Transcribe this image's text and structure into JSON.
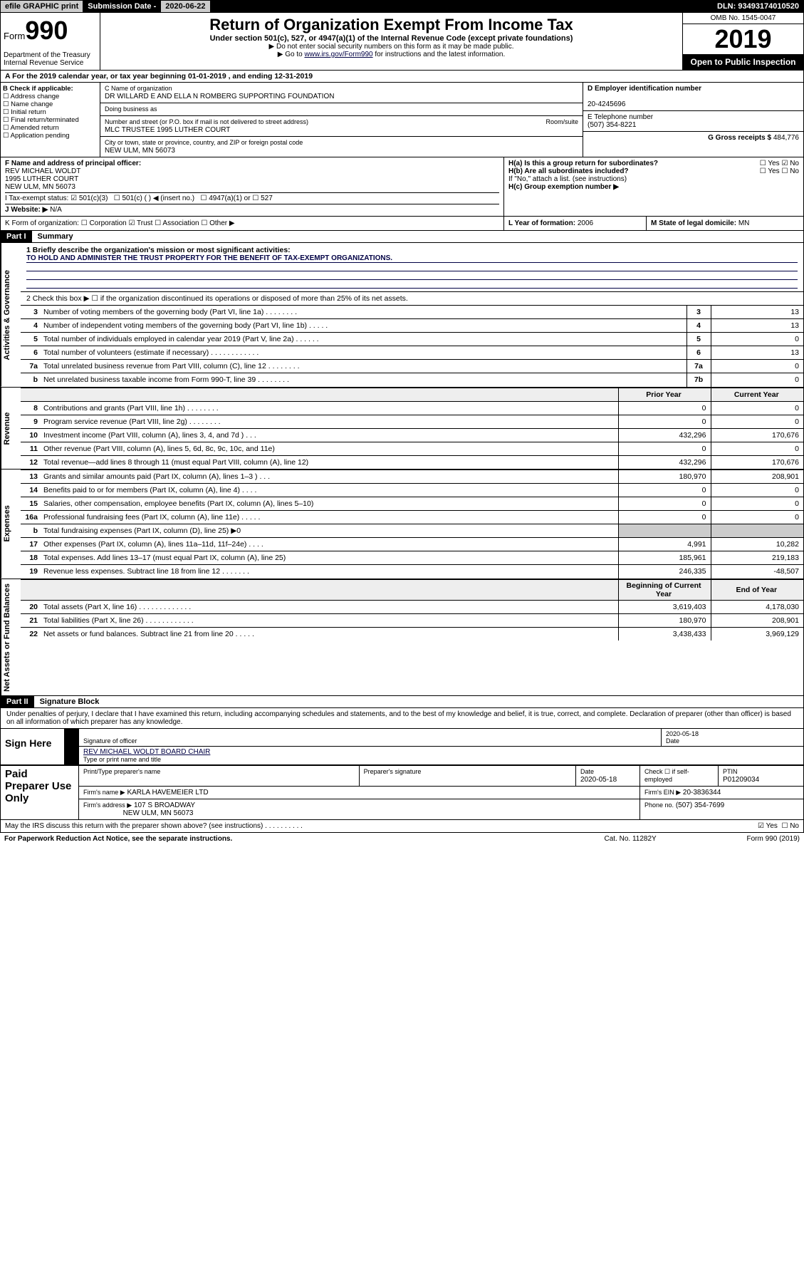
{
  "top": {
    "efile": "efile GRAPHIC print",
    "subdate_lbl": "Submission Date - ",
    "subdate_val": "2020-06-22",
    "dln": "DLN: 93493174010520"
  },
  "header": {
    "form_label": "Form",
    "form_num": "990",
    "dept": "Department of the Treasury\nInternal Revenue Service",
    "title": "Return of Organization Exempt From Income Tax",
    "sub": "Under section 501(c), 527, or 4947(a)(1) of the Internal Revenue Code (except private foundations)",
    "note1": "▶ Do not enter social security numbers on this form as it may be made public.",
    "note2a": "▶ Go to ",
    "note2_link": "www.irs.gov/Form990",
    "note2b": " for instructions and the latest information.",
    "omb": "OMB No. 1545-0047",
    "year": "2019",
    "open": "Open to Public Inspection"
  },
  "period": "A For the 2019 calendar year, or tax year beginning 01-01-2019   , and ending 12-31-2019",
  "boxB": {
    "title": "B Check if applicable:",
    "items": [
      "Address change",
      "Name change",
      "Initial return",
      "Final return/terminated",
      "Amended return",
      "Application pending"
    ]
  },
  "boxC": {
    "name_lbl": "C Name of organization",
    "name": "DR WILLARD E AND ELLA N ROMBERG SUPPORTING FOUNDATION",
    "dba_lbl": "Doing business as",
    "addr_lbl": "Number and street (or P.O. box if mail is not delivered to street address)",
    "room_lbl": "Room/suite",
    "addr": "MLC TRUSTEE 1995 LUTHER COURT",
    "city_lbl": "City or town, state or province, country, and ZIP or foreign postal code",
    "city": "NEW ULM, MN  56073"
  },
  "boxD": {
    "lbl": "D Employer identification number",
    "val": "20-4245696"
  },
  "boxE": {
    "lbl": "E Telephone number",
    "val": "(507) 354-8221"
  },
  "boxG": {
    "lbl": "G Gross receipts $",
    "val": "484,776"
  },
  "boxF": {
    "lbl": "F Name and address of principal officer:",
    "name": "REV MICHAEL WOLDT",
    "addr1": "1995 LUTHER COURT",
    "addr2": "NEW ULM, MN  56073"
  },
  "boxH": {
    "a": "H(a)  Is this a group return for subordinates?",
    "a_yes": "Yes",
    "a_no": "No",
    "b": "H(b)  Are all subordinates included?",
    "b_yes": "Yes",
    "b_no": "No",
    "b_note": "If \"No,\" attach a list. (see instructions)",
    "c": "H(c)  Group exemption number ▶"
  },
  "taxstatus": {
    "lbl": "I   Tax-exempt status:",
    "c3": "501(c)(3)",
    "c": "501(c) (  ) ◀ (insert no.)",
    "a1": "4947(a)(1) or",
    "s527": "527"
  },
  "website": {
    "lbl": "J   Website: ▶",
    "val": "N/A"
  },
  "boxK": "K Form of organization:  ☐ Corporation  ☑ Trust  ☐ Association  ☐ Other ▶",
  "boxL": {
    "lbl": "L Year of formation:",
    "val": "2006"
  },
  "boxM": {
    "lbl": "M State of legal domicile:",
    "val": "MN"
  },
  "part1": {
    "hdr": "Part I",
    "title": "Summary"
  },
  "mission_q": "1   Briefly describe the organization's mission or most significant activities:",
  "mission": "TO HOLD AND ADMINISTER THE TRUST PROPERTY FOR THE BENEFIT OF TAX-EXEMPT ORGANIZATIONS.",
  "q2": "2   Check this box ▶ ☐  if the organization discontinued its operations or disposed of more than 25% of its net assets.",
  "vtabs": {
    "gov": "Activities & Governance",
    "rev": "Revenue",
    "exp": "Expenses",
    "net": "Net Assets or Fund Balances"
  },
  "gov_rows": [
    {
      "n": "3",
      "d": "Number of voting members of the governing body (Part VI, line 1a)   .    .    .    .    .    .    .    .",
      "box": "3",
      "v": "13"
    },
    {
      "n": "4",
      "d": "Number of independent voting members of the governing body (Part VI, line 1b)  .    .    .    .    .",
      "box": "4",
      "v": "13"
    },
    {
      "n": "5",
      "d": "Total number of individuals employed in calendar year 2019 (Part V, line 2a)    .    .    .    .    .    .",
      "box": "5",
      "v": "0"
    },
    {
      "n": "6",
      "d": "Total number of volunteers (estimate if necessary)    .    .    .    .    .    .    .    .    .    .    .    .",
      "box": "6",
      "v": "13"
    },
    {
      "n": "7a",
      "d": "Total unrelated business revenue from Part VIII, column (C), line 12  .    .    .    .    .    .    .    .",
      "box": "7a",
      "v": "0"
    },
    {
      "n": "b",
      "d": "Net unrelated business taxable income from Form 990-T, line 39     .    .    .    .    .    .    .    .",
      "box": "7b",
      "v": "0"
    }
  ],
  "colhdr": {
    "prior": "Prior Year",
    "curr": "Current Year"
  },
  "rev_rows": [
    {
      "n": "8",
      "d": "Contributions and grants (Part VIII, line 1h)   .    .    .    .    .    .    .    .",
      "p": "0",
      "c": "0"
    },
    {
      "n": "9",
      "d": "Program service revenue (Part VIII, line 2g)    .    .    .    .    .    .    .    .",
      "p": "0",
      "c": "0"
    },
    {
      "n": "10",
      "d": "Investment income (Part VIII, column (A), lines 3, 4, and 7d )    .    .    .",
      "p": "432,296",
      "c": "170,676"
    },
    {
      "n": "11",
      "d": "Other revenue (Part VIII, column (A), lines 5, 6d, 8c, 9c, 10c, and 11e)",
      "p": "0",
      "c": "0"
    },
    {
      "n": "12",
      "d": "Total revenue—add lines 8 through 11 (must equal Part VIII, column (A), line 12)",
      "p": "432,296",
      "c": "170,676"
    }
  ],
  "exp_rows": [
    {
      "n": "13",
      "d": "Grants and similar amounts paid (Part IX, column (A), lines 1–3 )    .    .    .",
      "p": "180,970",
      "c": "208,901"
    },
    {
      "n": "14",
      "d": "Benefits paid to or for members (Part IX, column (A), line 4)    .    .    .    .",
      "p": "0",
      "c": "0"
    },
    {
      "n": "15",
      "d": "Salaries, other compensation, employee benefits (Part IX, column (A), lines 5–10)",
      "p": "0",
      "c": "0"
    },
    {
      "n": "16a",
      "d": "Professional fundraising fees (Part IX, column (A), line 11e)   .    .    .    .    .",
      "p": "0",
      "c": "0"
    },
    {
      "n": "b",
      "d": "Total fundraising expenses (Part IX, column (D), line 25) ▶0",
      "p": "",
      "c": "",
      "shade": true
    },
    {
      "n": "17",
      "d": "Other expenses (Part IX, column (A), lines 11a–11d, 11f–24e)  .    .    .    .",
      "p": "4,991",
      "c": "10,282"
    },
    {
      "n": "18",
      "d": "Total expenses. Add lines 13–17 (must equal Part IX, column (A), line 25)",
      "p": "185,961",
      "c": "219,183"
    },
    {
      "n": "19",
      "d": "Revenue less expenses. Subtract line 18 from line 12   .    .    .    .    .    .    .",
      "p": "246,335",
      "c": "-48,507"
    }
  ],
  "net_hdr": {
    "beg": "Beginning of Current Year",
    "end": "End of Year"
  },
  "net_rows": [
    {
      "n": "20",
      "d": "Total assets (Part X, line 16)  .    .    .    .    .    .    .    .    .    .    .    .    .",
      "p": "3,619,403",
      "c": "4,178,030"
    },
    {
      "n": "21",
      "d": "Total liabilities (Part X, line 26)    .    .    .    .    .    .    .    .    .    .    .    .",
      "p": "180,970",
      "c": "208,901"
    },
    {
      "n": "22",
      "d": "Net assets or fund balances. Subtract line 21 from line 20  .    .    .    .    .",
      "p": "3,438,433",
      "c": "3,969,129"
    }
  ],
  "part2": {
    "hdr": "Part II",
    "title": "Signature Block"
  },
  "perjury": "Under penalties of perjury, I declare that I have examined this return, including accompanying schedules and statements, and to the best of my knowledge and belief, it is true, correct, and complete. Declaration of preparer (other than officer) is based on all information of which preparer has any knowledge.",
  "sign": {
    "here": "Sign Here",
    "sig_lbl": "Signature of officer",
    "date_lbl": "Date",
    "date": "2020-05-18",
    "name": "REV MICHAEL WOLDT  BOARD CHAIR",
    "name_lbl": "Type or print name and title"
  },
  "paid": {
    "lab": "Paid Preparer Use Only",
    "r1": {
      "c1_lbl": "Print/Type preparer's name",
      "c2_lbl": "Preparer's signature",
      "c3_lbl": "Date",
      "c3": "2020-05-18",
      "c4": "Check ☐ if self-employed",
      "c5_lbl": "PTIN",
      "c5": "P01209034"
    },
    "r2": {
      "lbl": "Firm's name    ▶",
      "val": "KARLA HAVEMEIER LTD",
      "ein_lbl": "Firm's EIN ▶",
      "ein": "20-3836344"
    },
    "r3": {
      "lbl": "Firm's address ▶",
      "val": "107 S BROADWAY",
      "city": "NEW ULM, MN  56073",
      "ph_lbl": "Phone no.",
      "ph": "(507) 354-7699"
    }
  },
  "discuss": {
    "q": "May the IRS discuss this return with the preparer shown above? (see instructions)    .    .    .    .    .    .    .    .    .    .",
    "yes": "Yes",
    "no": "No"
  },
  "foot": {
    "l": "For Paperwork Reduction Act Notice, see the separate instructions.",
    "m": "Cat. No. 11282Y",
    "r": "Form 990 (2019)"
  }
}
